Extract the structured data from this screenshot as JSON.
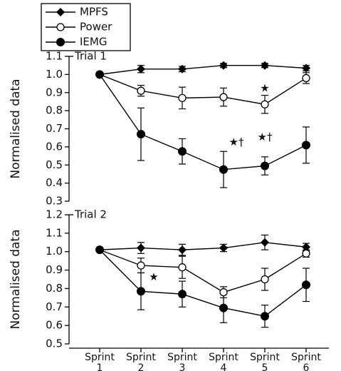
{
  "chart_data": [
    {
      "type": "line",
      "title": "Trial 1",
      "y_label": "Normalised data",
      "categories": [
        null,
        null,
        null,
        null,
        null,
        null
      ],
      "ylim": [
        0.3,
        1.1
      ],
      "yticks": [
        0.3,
        0.4,
        0.5,
        0.6,
        0.7,
        0.8,
        0.9,
        {
          "value": 1.0,
          "label": "1.0"
        },
        1.1
      ],
      "series": [
        {
          "name": "MPFS",
          "marker": "diamond",
          "color": "#000000",
          "values": [
            1.0,
            1.03,
            1.03,
            1.05,
            1.05,
            1.035
          ],
          "errors": [
            null,
            0.02,
            0.015,
            0.012,
            0.012,
            0.015
          ]
        },
        {
          "name": "Power",
          "marker": "open-circle",
          "color": "#000000",
          "values": [
            1.0,
            0.91,
            0.87,
            0.875,
            0.835,
            0.98
          ],
          "errors": [
            null,
            0.03,
            0.06,
            0.05,
            0.05,
            0.03
          ]
        },
        {
          "name": "IEMG",
          "marker": "filled-circle",
          "color": "#000000",
          "values": [
            1.0,
            0.67,
            0.575,
            0.475,
            0.495,
            0.61
          ],
          "errors": [
            null,
            0.145,
            0.07,
            0.1,
            0.05,
            0.1
          ]
        }
      ],
      "annotations": [
        {
          "text": "★"
        },
        {
          "text": "★†"
        },
        {
          "text": "★†"
        }
      ]
    },
    {
      "type": "line",
      "title": "Trial 2",
      "y_label": "Normalised data",
      "categories": [
        "Sprint 1",
        "Sprint 2",
        "Sprint 3",
        "Sprint 4",
        "Sprint 5",
        "Sprint 6"
      ],
      "ylim": [
        0.5,
        1.2
      ],
      "yticks": [
        0.5,
        0.6,
        0.7,
        0.8,
        0.9,
        {
          "value": 1.0,
          "label": "1.0"
        },
        1.1,
        1.2
      ],
      "series": [
        {
          "marker": "diamond",
          "color": "#000000",
          "values": [
            1.01,
            1.02,
            1.01,
            1.02,
            1.05,
            1.025
          ],
          "errors": [
            null,
            0.03,
            0.03,
            0.02,
            0.04,
            0.02
          ]
        },
        {
          "marker": "open-circle",
          "color": "#000000",
          "values": [
            1.01,
            0.925,
            0.915,
            0.78,
            0.85,
            0.99
          ],
          "errors": [
            null,
            0.04,
            0.06,
            0.03,
            0.06,
            0.02
          ]
        },
        {
          "marker": "filled-circle",
          "color": "#000000",
          "values": [
            1.01,
            0.785,
            0.77,
            0.695,
            0.65,
            0.82
          ],
          "errors": [
            null,
            0.1,
            0.07,
            0.08,
            0.06,
            0.09
          ]
        }
      ],
      "annotations": [
        {
          "text": "★"
        }
      ]
    }
  ]
}
